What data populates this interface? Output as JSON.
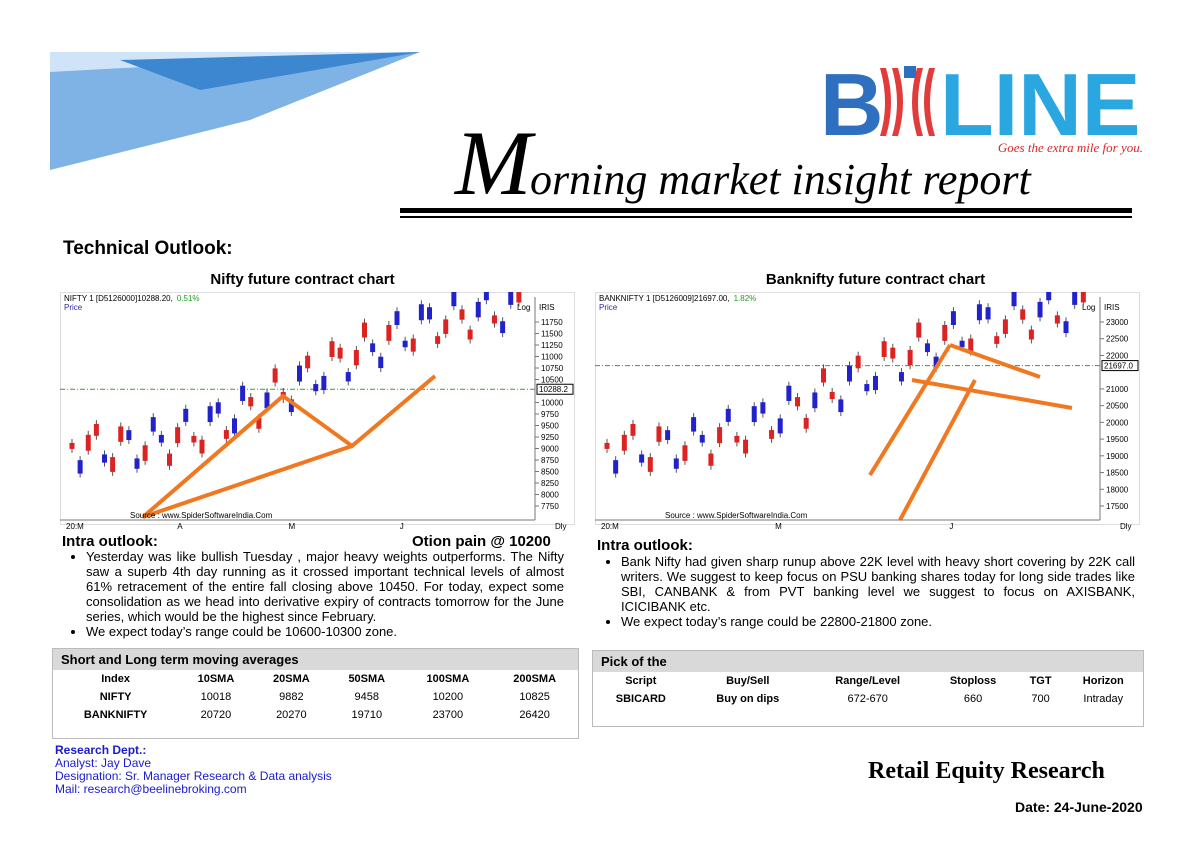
{
  "header": {
    "logo_first": "B",
    "logo_rest": "LINE",
    "tagline": "Goes the extra mile for you.",
    "title_initial": "M",
    "title_rest": "orning market insight report"
  },
  "section_title": "Technical Outlook:",
  "charts": [
    {
      "title": "Nifty future contract chart",
      "symbol": "NIFTY 1 [D5126000]10288.20,",
      "change": "0.51%",
      "price_label": "Price",
      "scale": "Log",
      "indicator": "IRIS",
      "yticks": [
        11750,
        11500,
        11250,
        11000,
        10750,
        10500,
        10000,
        9750,
        9500,
        9250,
        9000,
        8750,
        8500,
        8250,
        8000,
        7750
      ],
      "last": {
        "value": 10288.2,
        "label": "10288.2"
      },
      "xticks": [
        "20:M",
        "A",
        "M",
        "J"
      ],
      "period": "Dly",
      "source": "Source : www.SpiderSoftwareIndia.Com"
    },
    {
      "title": "Banknifty future contract chart",
      "symbol": "BANKNIFTY 1 [D5126009]21697.00,",
      "change": "1.82%",
      "price_label": "Price",
      "scale": "Log",
      "indicator": "IRIS",
      "yticks": [
        23000,
        22500,
        22000,
        21000,
        20500,
        20000,
        19500,
        19000,
        18500,
        18000,
        17500
      ],
      "last": {
        "value": 21697,
        "label": "21697.0"
      },
      "xticks": [
        "20:M",
        "M",
        "J"
      ],
      "period": "Dly",
      "source": "Source : www.SpiderSoftwareIndia.Com"
    }
  ],
  "nifty_outlook": {
    "heading": "Intra  outlook:",
    "option_pain": "Otion pain @  10200",
    "bullets": [
      "Yesterday was like bullish Tuesday , major heavy weights outperforms. The Nifty saw a superb 4th day running as it crossed important technical levels of almost 61% retracement of the entire fall closing above 10450. For today, expect some consolidation as we head into derivative expiry of contracts tomorrow for the June series, which would be the highest since February.",
      "We expect today’s range could be 10600-10300 zone."
    ]
  },
  "banknifty_outlook": {
    "heading": "Intra  outlook:",
    "bullets": [
      "Bank Nifty had given sharp runup above 22K level with heavy short covering by 22K call writers. We suggest to keep focus on PSU banking shares today for long side trades like SBI, CANBANK & from PVT banking level we suggest to focus on AXISBANK, ICICIBANK etc.",
      "We expect today’s range could be 22800-21800 zone."
    ]
  },
  "moving_averages": {
    "title": "Short and Long term moving averages",
    "columns": [
      "Index",
      "10SMA",
      "20SMA",
      "50SMA",
      "100SMA",
      "200SMA"
    ],
    "rows": [
      [
        "NIFTY",
        "10018",
        "9882",
        "9458",
        "10200",
        "10825"
      ],
      [
        "BANKNIFTY",
        "20720",
        "20270",
        "19710",
        "23700",
        "26420"
      ]
    ]
  },
  "pick": {
    "title": "Pick of the",
    "columns": [
      "Script",
      "Buy/Sell",
      "Range/Level",
      "Stoploss",
      "TGT",
      "Horizon"
    ],
    "rows": [
      [
        "SBICARD",
        "Buy on dips",
        "672-670",
        "660",
        "700",
        "Intraday"
      ]
    ]
  },
  "research": {
    "dept": "Research Dept.:",
    "analyst": "Analyst: Jay Dave",
    "designation": "Designation: Sr. Manager Research & Data analysis",
    "mail": "Mail: research@beelinebroking.com"
  },
  "footer": {
    "brand": "Retail Equity Research",
    "date": "Date: 24-June-2020"
  }
}
